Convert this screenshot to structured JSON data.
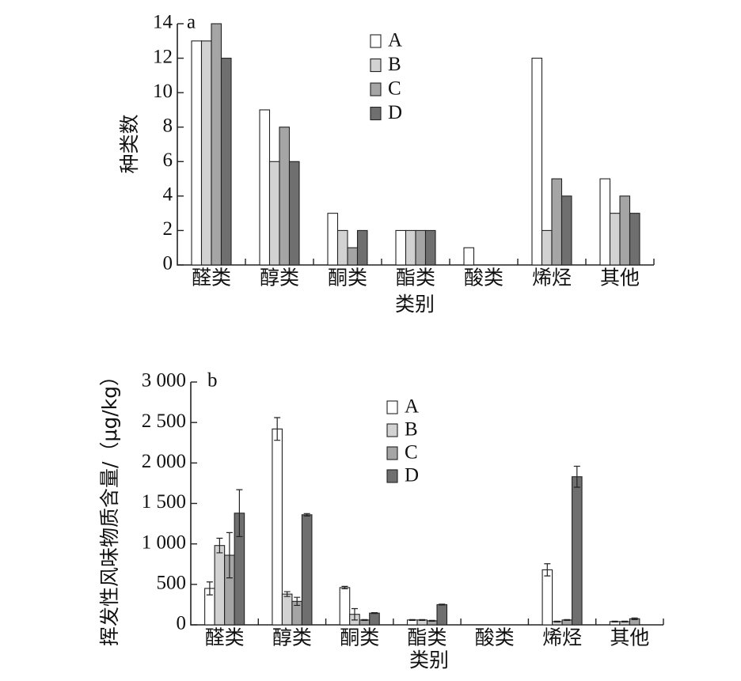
{
  "colors": {
    "A": "#ffffff",
    "B": "#d2d2d2",
    "C": "#a5a5a5",
    "D": "#6f6f6f"
  },
  "chart_data": [
    {
      "type": "bar",
      "panel_label": "a",
      "xlabel": "类别",
      "ylabel": "种类数",
      "ylim": [
        0,
        14
      ],
      "yticks": [
        0,
        2,
        4,
        6,
        8,
        10,
        12,
        14
      ],
      "ytick_labels": [
        "0",
        "2",
        "4",
        "6",
        "8",
        "10",
        "12",
        "14"
      ],
      "categories": [
        "醛类",
        "醇类",
        "酮类",
        "酯类",
        "酸类",
        "烯烃",
        "其他"
      ],
      "legend": "top-center",
      "series": [
        {
          "name": "A",
          "values": [
            13,
            9,
            3,
            2,
            1,
            12,
            5
          ]
        },
        {
          "name": "B",
          "values": [
            13,
            6,
            2,
            2,
            0,
            2,
            3
          ]
        },
        {
          "name": "C",
          "values": [
            14,
            8,
            1,
            2,
            0,
            5,
            4
          ]
        },
        {
          "name": "D",
          "values": [
            12,
            6,
            2,
            2,
            0,
            4,
            3
          ]
        }
      ]
    },
    {
      "type": "bar",
      "panel_label": "b",
      "xlabel": "类别",
      "ylabel": "挥发性风味物质含量/（μg/kg）",
      "ylim": [
        0,
        3000
      ],
      "yticks": [
        0,
        500,
        1000,
        1500,
        2000,
        2500,
        3000
      ],
      "ytick_labels": [
        "0",
        "500",
        "1 000",
        "1 500",
        "2 000",
        "2 500",
        "3 000"
      ],
      "categories": [
        "醛类",
        "醇类",
        "酮类",
        "酯类",
        "酸类",
        "烯烃",
        "其他"
      ],
      "legend": "top-center",
      "series": [
        {
          "name": "A",
          "values": [
            450,
            2420,
            460,
            60,
            0,
            680,
            40
          ],
          "errors": [
            80,
            140,
            15,
            5,
            0,
            75,
            5
          ]
        },
        {
          "name": "B",
          "values": [
            980,
            380,
            130,
            60,
            0,
            40,
            40
          ],
          "errors": [
            90,
            30,
            70,
            5,
            0,
            5,
            5
          ]
        },
        {
          "name": "C",
          "values": [
            860,
            290,
            60,
            50,
            0,
            60,
            75
          ],
          "errors": [
            280,
            50,
            5,
            5,
            0,
            5,
            10
          ]
        },
        {
          "name": "D",
          "values": [
            1380,
            1360,
            145,
            250,
            0,
            1830,
            0
          ],
          "errors": [
            290,
            15,
            5,
            5,
            0,
            130,
            0
          ]
        }
      ]
    }
  ]
}
